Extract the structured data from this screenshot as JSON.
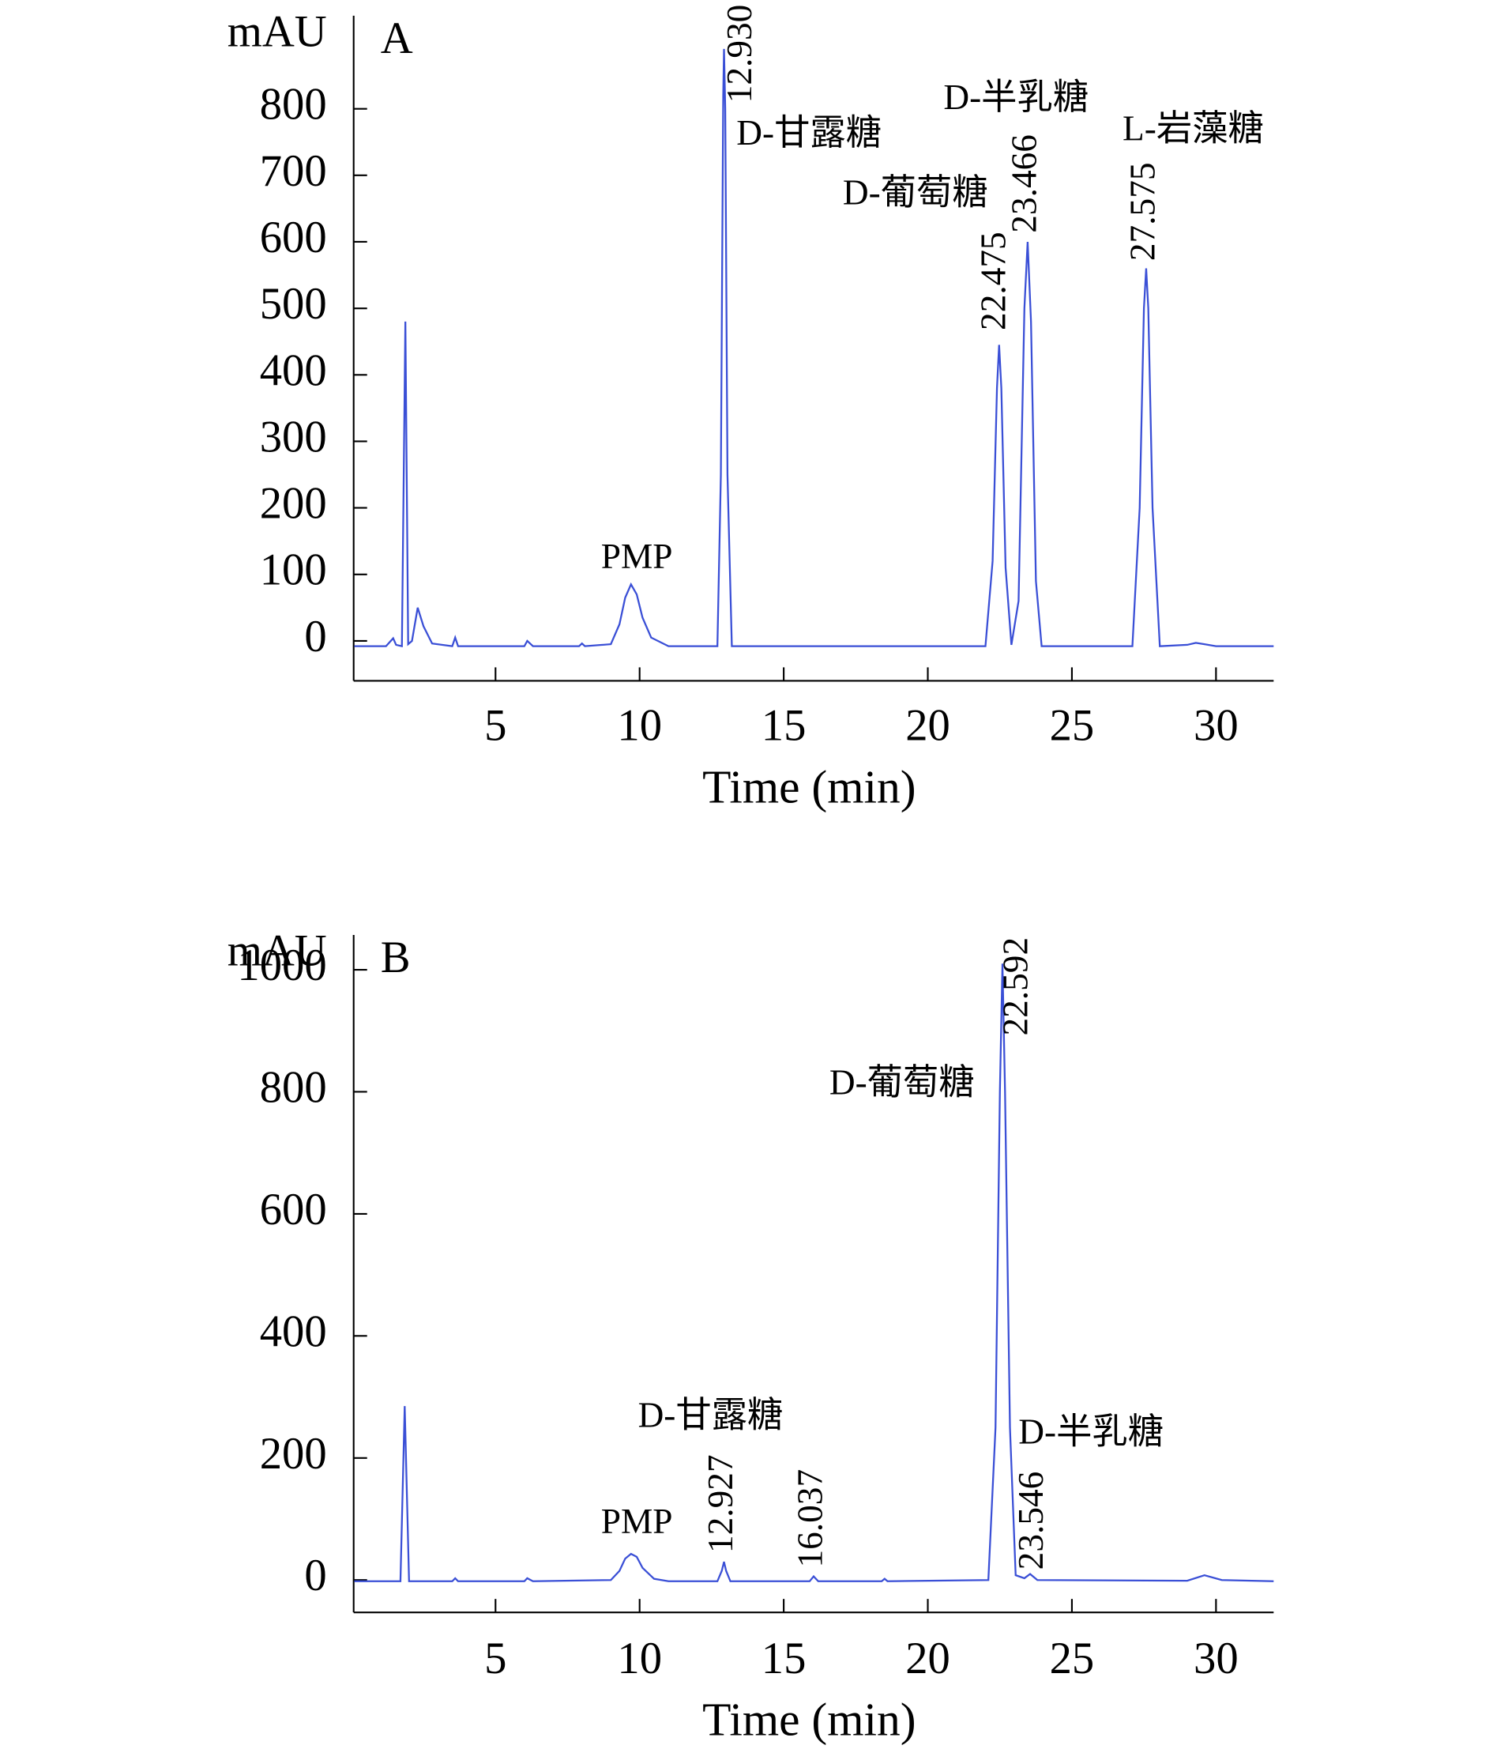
{
  "chart_data": [
    {
      "type": "line",
      "panel": "A",
      "ylabel": "mAU",
      "xlabel": "Time (min)",
      "color": "#3a4fd6",
      "xlim": [
        0,
        32
      ],
      "xticks": [
        5,
        10,
        15,
        20,
        25,
        30
      ],
      "ylim": [
        -60,
        940
      ],
      "yticks": [
        0,
        100,
        200,
        300,
        400,
        500,
        600,
        700,
        800
      ],
      "x": [
        0.1,
        1.2,
        1.45,
        1.55,
        1.75,
        1.87,
        1.97,
        2.1,
        2.3,
        2.5,
        2.8,
        3.5,
        3.6,
        3.7,
        6.0,
        6.1,
        6.3,
        7.9,
        8.0,
        8.1,
        9.0,
        9.3,
        9.5,
        9.7,
        9.9,
        10.1,
        10.4,
        11.0,
        12.7,
        12.82,
        12.9,
        12.93,
        12.97,
        13.05,
        13.2,
        22.0,
        22.25,
        22.4,
        22.475,
        22.55,
        22.7,
        22.9,
        23.15,
        23.35,
        23.466,
        23.58,
        23.75,
        23.95,
        27.1,
        27.35,
        27.5,
        27.575,
        27.65,
        27.8,
        28.05,
        29.0,
        29.3,
        29.6,
        30.0,
        32.0
      ],
      "values": [
        -8,
        -8,
        4,
        -6,
        -8,
        480,
        -5,
        0,
        50,
        22,
        -4,
        -8,
        5,
        -8,
        -8,
        0,
        -8,
        -8,
        -4,
        -8,
        -5,
        25,
        65,
        85,
        70,
        35,
        5,
        -8,
        -8,
        250,
        820,
        890,
        800,
        250,
        -8,
        -8,
        120,
        380,
        445,
        380,
        110,
        -6,
        60,
        500,
        600,
        480,
        90,
        -8,
        -8,
        200,
        500,
        560,
        500,
        200,
        -8,
        -6,
        -3,
        -5,
        -8,
        -8
      ],
      "peak_labels": [
        {
          "value": 12.93,
          "label": "12.930"
        },
        {
          "value": 22.475,
          "label": "22.475"
        },
        {
          "value": 23.466,
          "label": "23.466"
        },
        {
          "value": 27.575,
          "label": "27.575"
        }
      ],
      "annotations": [
        "PMP",
        "D-甘露糖",
        "D-葡萄糖",
        "D-半乳糖",
        "L-岩藻糖"
      ]
    },
    {
      "type": "line",
      "panel": "B",
      "ylabel": "mAU",
      "xlabel": "Time (min)",
      "color": "#3a4fd6",
      "xlim": [
        0,
        32
      ],
      "xticks": [
        5,
        10,
        15,
        20,
        25,
        30
      ],
      "ylim": [
        -53,
        1057
      ],
      "yticks": [
        0,
        200,
        400,
        600,
        800,
        1000
      ],
      "x": [
        0.1,
        1.7,
        1.85,
        2.0,
        3.5,
        3.6,
        3.7,
        6.0,
        6.1,
        6.3,
        9.0,
        9.3,
        9.5,
        9.7,
        9.9,
        10.1,
        10.5,
        11.0,
        12.7,
        12.85,
        12.93,
        13.0,
        13.15,
        15.9,
        16.04,
        16.2,
        18.4,
        18.5,
        18.6,
        22.1,
        22.35,
        22.5,
        22.592,
        22.68,
        22.85,
        23.05,
        23.35,
        23.55,
        23.8,
        29.0,
        29.6,
        30.2,
        32.0
      ],
      "values": [
        -2,
        -2,
        285,
        -2,
        -2,
        3,
        -2,
        -2,
        3,
        -2,
        0,
        15,
        35,
        43,
        38,
        20,
        2,
        -2,
        -2,
        15,
        30,
        15,
        -2,
        -2,
        6,
        -2,
        -2,
        2,
        -2,
        0,
        250,
        800,
        1010,
        800,
        250,
        8,
        3,
        10,
        0,
        -1,
        8,
        0,
        -2
      ],
      "peak_labels": [
        {
          "value": 12.927,
          "label": "12.927"
        },
        {
          "value": 16.037,
          "label": "16.037"
        },
        {
          "value": 22.592,
          "label": "22.592"
        },
        {
          "value": 23.546,
          "label": "23.546"
        }
      ],
      "annotations": [
        "PMP",
        "D-甘露糖",
        "D-葡萄糖",
        "D-半乳糖"
      ]
    }
  ]
}
